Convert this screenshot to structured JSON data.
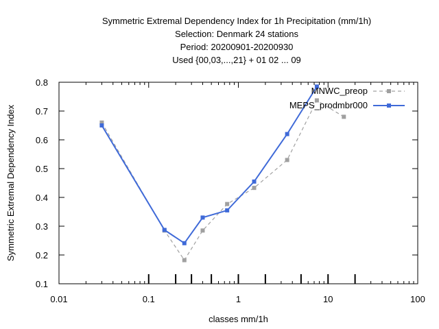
{
  "chart_data": {
    "type": "line",
    "title_lines": [
      "Symmetric Extremal Dependency Index  for 1h Precipitation (mm/1h)",
      "Selection: Denmark     24 stations",
      "Period: 20200901-20200930",
      "Used {00,03,...,21} + 01 02 ... 09"
    ],
    "xlabel": "classes mm/1h",
    "ylabel": "Symmetric Extremal Dependency Index",
    "x_scale": "log",
    "xlim": [
      0.01,
      100
    ],
    "ylim": [
      0.1,
      0.8
    ],
    "x_ticks": [
      0.01,
      0.1,
      1,
      10,
      100
    ],
    "x_tick_labels": [
      "0.01",
      "0.1",
      "1",
      "10",
      "100"
    ],
    "y_ticks": [
      0.1,
      0.2,
      0.3,
      0.4,
      0.5,
      0.6,
      0.7,
      0.8
    ],
    "y_tick_labels": [
      "0.1",
      "0.2",
      "0.3",
      "0.4",
      "0.5",
      "0.6",
      "0.7",
      "0.8"
    ],
    "class_markers": [
      0.1,
      0.2,
      0.3,
      0.5,
      1,
      2,
      5,
      10,
      20
    ],
    "grid": false,
    "legend_position": "top-right",
    "series": [
      {
        "name": "MNWC_preop",
        "color": "#a0a0a0",
        "style": "dashed",
        "x": [
          0.03,
          0.15,
          0.25,
          0.4,
          0.75,
          1.5,
          3.5,
          7.5,
          15
        ],
        "y": [
          0.66,
          0.285,
          0.182,
          0.285,
          0.377,
          0.433,
          0.53,
          0.737,
          0.68
        ]
      },
      {
        "name": "MEPS_prodmbr000",
        "color": "#3f6ad8",
        "style": "solid",
        "x": [
          0.03,
          0.15,
          0.25,
          0.4,
          0.75,
          1.5,
          3.5,
          7.5
        ],
        "y": [
          0.65,
          0.287,
          0.241,
          0.33,
          0.355,
          0.455,
          0.62,
          0.785
        ]
      }
    ]
  }
}
